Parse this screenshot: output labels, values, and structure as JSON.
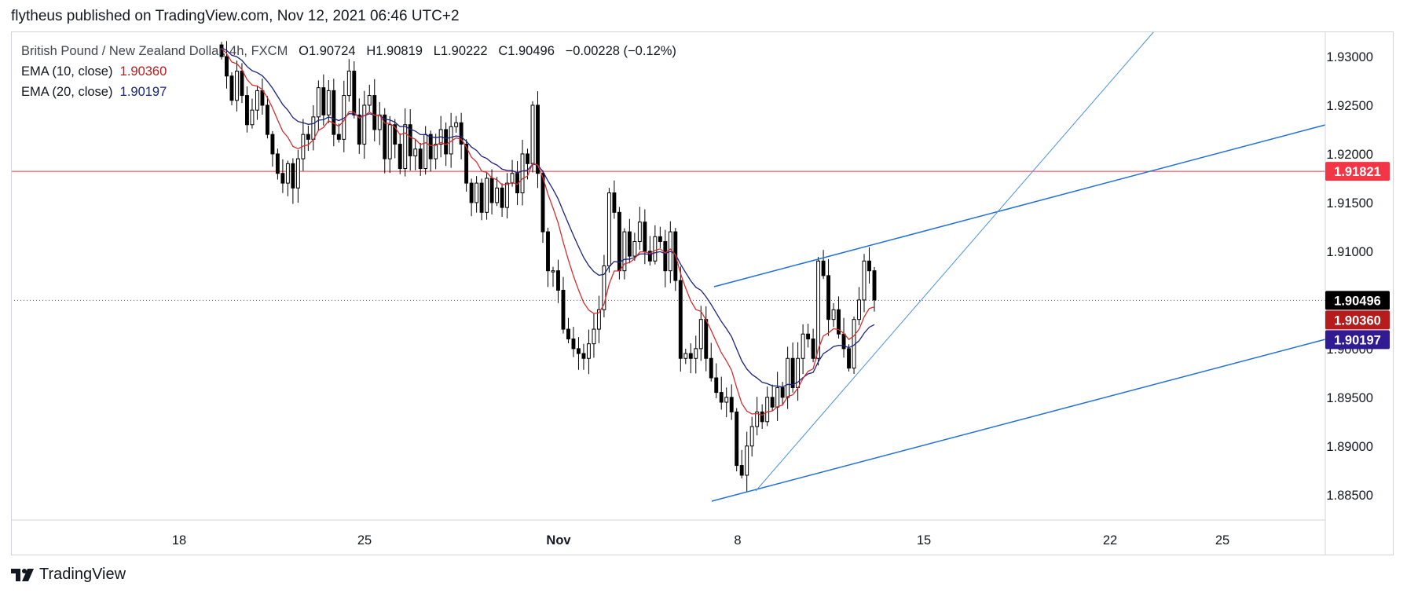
{
  "header": {
    "published": "flytheus published on TradingView.com, Nov 12, 2021 06:46 UTC+2"
  },
  "footer": {
    "brand": "TradingView"
  },
  "legend": {
    "symbol": "British Pound / New Zealand Dollar, 4h, FXCM",
    "open_label": "O",
    "open": "1.90724",
    "high_label": "H",
    "high": "1.90819",
    "low_label": "L",
    "low": "1.90222",
    "close_label": "C",
    "close": "1.90496",
    "change": "−0.00228 (−0.12%)",
    "ema10_label": "EMA (10, close)",
    "ema10_value": "1.90360",
    "ema20_label": "EMA (20, close)",
    "ema20_value": "1.90197"
  },
  "colors": {
    "up": "#ffffff",
    "down": "#000000",
    "wick": "#000000",
    "ema10": "#d32f2f",
    "ema20": "#1a237e",
    "trendline": "#1e6fd9",
    "resistance": "#f23645",
    "current_tag": "#000000",
    "ema10_tag": "#b71c1c",
    "ema20_tag": "#311b92"
  },
  "chart_data": {
    "type": "candlestick",
    "symbol": "British Pound / New Zealand Dollar",
    "timeframe": "4h",
    "x_ticks": [
      "18",
      "25",
      "Nov",
      "8",
      "15",
      "22",
      "25"
    ],
    "y_ticks": [
      "1.93000",
      "1.92500",
      "1.92000",
      "1.91500",
      "1.91000",
      "1.90000",
      "1.89500",
      "1.89000",
      "1.88500"
    ],
    "ylim": [
      1.8824,
      1.9325
    ],
    "price_tags": [
      {
        "name": "resistance",
        "value": "1.91821"
      },
      {
        "name": "last",
        "value": "1.90496"
      },
      {
        "name": "ema10",
        "value": "1.90360"
      },
      {
        "name": "ema20",
        "value": "1.90197"
      }
    ],
    "horizontal_line": 1.91821,
    "current_price": 1.90496,
    "closes": [
      1.93,
      1.928,
      1.9255,
      1.9285,
      1.926,
      1.923,
      1.9245,
      1.9265,
      1.925,
      1.922,
      1.92,
      1.918,
      1.917,
      1.919,
      1.9165,
      1.9195,
      1.922,
      1.9215,
      1.9238,
      1.9268,
      1.924,
      1.9265,
      1.922,
      1.9215,
      1.926,
      1.9285,
      1.924,
      1.921,
      1.925,
      1.926,
      1.9225,
      1.924,
      1.9195,
      1.923,
      1.921,
      1.9185,
      1.923,
      1.9198,
      1.9205,
      1.9185,
      1.922,
      1.9195,
      1.921,
      1.9225,
      1.92,
      1.9228,
      1.9232,
      1.921,
      1.917,
      1.915,
      1.917,
      1.914,
      1.9175,
      1.915,
      1.9165,
      1.9145,
      1.917,
      1.918,
      1.916,
      1.92,
      1.919,
      1.925,
      1.918,
      1.912,
      1.908,
      1.908,
      1.906,
      1.902,
      1.901,
      1.9,
      1.8995,
      1.899,
      1.9005,
      1.902,
      1.904,
      1.9085,
      1.916,
      1.914,
      1.908,
      1.912,
      1.9095,
      1.911,
      1.913,
      1.91,
      1.909,
      1.9115,
      1.911,
      1.908,
      1.912,
      1.907,
      1.899,
      1.8995,
      1.899,
      1.9,
      1.903,
      1.899,
      1.897,
      1.8955,
      1.8945,
      1.895,
      1.8935,
      1.888,
      1.887,
      1.89,
      1.892,
      1.8935,
      1.8925,
      1.895,
      1.894,
      1.896,
      1.895,
      1.899,
      1.896,
      1.899,
      1.9015,
      1.901,
      1.899,
      1.909,
      1.9075,
      1.903,
      1.904,
      1.9015,
      1.9,
      1.898,
      1.903,
      1.905,
      1.909,
      1.908,
      1.905
    ]
  }
}
